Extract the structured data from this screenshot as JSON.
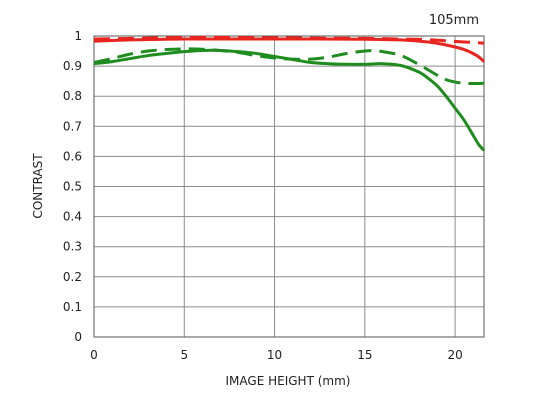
{
  "chart_data": {
    "type": "line",
    "title": "",
    "annotation": "105mm",
    "xlabel": "IMAGE HEIGHT (mm)",
    "ylabel": "CONTRAST",
    "xlim": [
      0,
      21.6
    ],
    "ylim": [
      0,
      1
    ],
    "xticks": [
      0,
      5,
      10,
      15,
      20
    ],
    "xtick_labels": [
      "0",
      "5",
      "10",
      "15",
      "20"
    ],
    "yticks": [
      0,
      0.1,
      0.2,
      0.3,
      0.4,
      0.5,
      0.6,
      0.7,
      0.8,
      0.9,
      1
    ],
    "ytick_labels": [
      "0",
      "0.1",
      "0.2",
      "0.3",
      "0.4",
      "0.5",
      "0.6",
      "0.7",
      "0.8",
      "0.9",
      "1"
    ],
    "grid": true,
    "series": [
      {
        "color": "#e8251e",
        "dash": "solid",
        "x": [
          0,
          2,
          5,
          8,
          10,
          12,
          15,
          17,
          18.5,
          19.5,
          20.5,
          21.2,
          21.6
        ],
        "y": [
          0.983,
          0.987,
          0.99,
          0.99,
          0.99,
          0.99,
          0.989,
          0.987,
          0.98,
          0.97,
          0.955,
          0.935,
          0.915
        ]
      },
      {
        "color": "#e8251e",
        "dash": "dashed",
        "x": [
          0,
          2,
          5,
          8,
          10,
          12,
          15,
          17,
          18.5,
          19.5,
          20.5,
          21.2,
          21.6
        ],
        "y": [
          0.99,
          0.992,
          0.995,
          0.995,
          0.994,
          0.993,
          0.992,
          0.99,
          0.988,
          0.984,
          0.98,
          0.978,
          0.976
        ]
      },
      {
        "color": "#1e8c1e",
        "dash": "solid",
        "x": [
          0,
          1,
          2,
          3,
          4,
          5,
          6,
          7,
          8,
          9,
          10,
          11,
          12,
          13,
          14,
          15,
          16,
          17,
          18,
          18.5,
          19,
          19.5,
          20,
          20.5,
          21,
          21.3,
          21.6
        ],
        "y": [
          0.908,
          0.915,
          0.925,
          0.935,
          0.942,
          0.948,
          0.952,
          0.952,
          0.948,
          0.942,
          0.932,
          0.922,
          0.912,
          0.908,
          0.906,
          0.906,
          0.908,
          0.902,
          0.88,
          0.86,
          0.835,
          0.8,
          0.76,
          0.72,
          0.67,
          0.64,
          0.62
        ]
      },
      {
        "color": "#1e8c1e",
        "dash": "dashed",
        "x": [
          0,
          1,
          2,
          3,
          4,
          5,
          6,
          7,
          8,
          9,
          10,
          11,
          12,
          13,
          14,
          15,
          15.5,
          16,
          17,
          18,
          19,
          19.5,
          20,
          20.5,
          21,
          21.6
        ],
        "y": [
          0.912,
          0.925,
          0.94,
          0.95,
          0.955,
          0.957,
          0.956,
          0.952,
          0.945,
          0.935,
          0.927,
          0.923,
          0.923,
          0.93,
          0.942,
          0.95,
          0.951,
          0.948,
          0.935,
          0.905,
          0.87,
          0.855,
          0.847,
          0.843,
          0.842,
          0.843
        ]
      }
    ]
  }
}
